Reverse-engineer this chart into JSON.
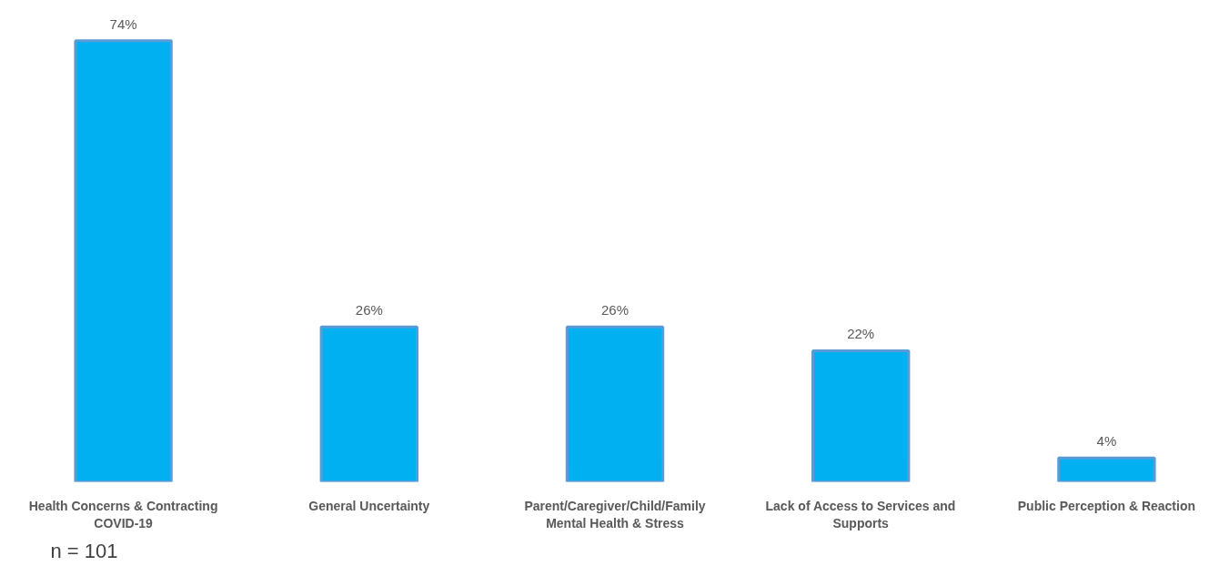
{
  "chart_data": {
    "type": "bar",
    "categories": [
      "Health Concerns & Contracting COVID-19",
      "General Uncertainty",
      "Parent/Caregiver/Child/Family Mental Health & Stress",
      "Lack of Access to Services and Supports",
      "Public Perception & Reaction"
    ],
    "values": [
      74,
      26,
      26,
      22,
      4
    ],
    "value_labels": [
      "74%",
      "26%",
      "26%",
      "22%",
      "4%"
    ],
    "color": "#00b0f0",
    "grid": false,
    "annotations": [
      "n = 101"
    ]
  }
}
